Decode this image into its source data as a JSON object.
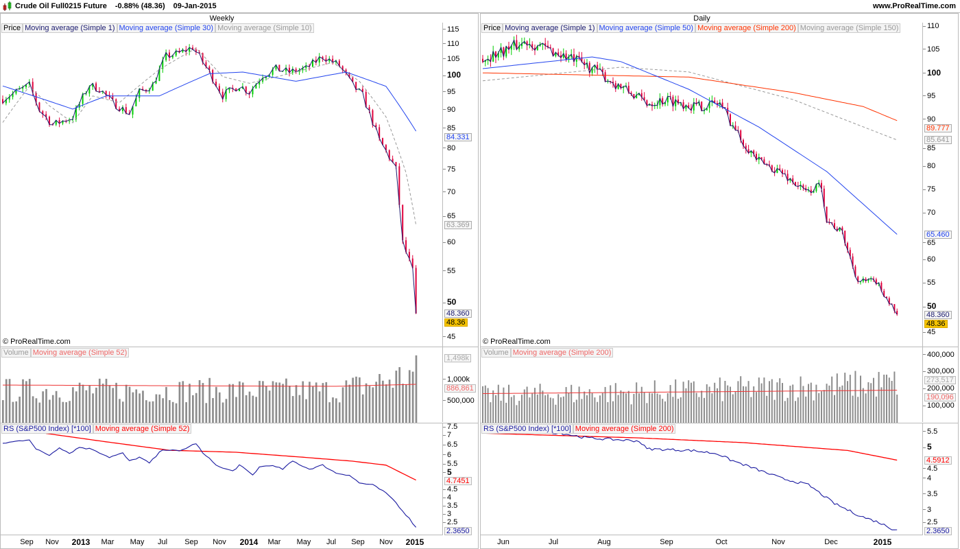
{
  "header": {
    "instrument": "Crude Oil Full0215 Future",
    "change": "-0.88% (48.36)",
    "date": "09-Jan-2015",
    "site": "www.ProRealTime.com",
    "icon": "candlestick-icon"
  },
  "colors": {
    "up": "#00cc00",
    "down": "#e0003c",
    "ma1": "#1a1a6e",
    "ma_blue": "#2244ee",
    "ma_red": "#ff3300",
    "ma_gray": "#999999",
    "volume": "#8c8c8c",
    "rs": "#1a1aa0",
    "rs_ma": "#ff0000",
    "last_bg": "#f5c400"
  },
  "copyright": "© ProRealTime.com",
  "chart_data": [
    {
      "type": "candlestick",
      "timeframe": "Weekly",
      "periods": 125,
      "legend": {
        "price": "Price",
        "ma1": "Moving average (Simple 1)",
        "ma_a": "Moving average (Simple 30)",
        "ma_b": "Moving average (Simple 10)"
      },
      "y_ticks": [
        "115",
        "110",
        "105",
        "100",
        "95",
        "90",
        "85",
        "80",
        "75",
        "70",
        "65",
        "60",
        "55",
        "50",
        "45"
      ],
      "x_labels": [
        "Sep",
        "Nov",
        "2013",
        "Mar",
        "May",
        "Jul",
        "Sep",
        "Nov",
        "2014",
        "Mar",
        "May",
        "Jul",
        "Sep",
        "Nov",
        "2015"
      ],
      "close_anchors": [
        [
          0,
          93
        ],
        [
          8,
          97
        ],
        [
          11,
          90
        ],
        [
          15,
          86
        ],
        [
          21,
          88
        ],
        [
          26,
          97
        ],
        [
          29,
          96
        ],
        [
          33,
          92
        ],
        [
          38,
          89
        ],
        [
          41,
          95
        ],
        [
          45,
          97
        ],
        [
          49,
          106
        ],
        [
          53,
          107
        ],
        [
          57,
          109
        ],
        [
          62,
          101
        ],
        [
          66,
          94
        ],
        [
          71,
          97
        ],
        [
          74,
          95
        ],
        [
          78,
          100
        ],
        [
          82,
          102
        ],
        [
          86,
          101
        ],
        [
          91,
          102
        ],
        [
          96,
          106
        ],
        [
          101,
          103
        ],
        [
          105,
          97
        ],
        [
          108,
          94
        ],
        [
          113,
          82
        ],
        [
          116,
          78
        ],
        [
          118,
          75
        ],
        [
          120,
          60
        ],
        [
          123,
          55
        ],
        [
          124,
          48.36
        ]
      ],
      "ma_a": [
        [
          0,
          96.8
        ],
        [
          21,
          90.2
        ],
        [
          31,
          93.9
        ],
        [
          47,
          93.9
        ],
        [
          62,
          100.5
        ],
        [
          72,
          101
        ],
        [
          88,
          98.2
        ],
        [
          103,
          101
        ],
        [
          115,
          96.7
        ],
        [
          124,
          84.33
        ]
      ],
      "ma_b": [
        [
          0,
          86.6
        ],
        [
          8,
          96.7
        ],
        [
          14,
          91.1
        ],
        [
          21,
          86.5
        ],
        [
          27,
          93.9
        ],
        [
          35,
          92
        ],
        [
          47,
          101.8
        ],
        [
          58,
          108.6
        ],
        [
          66,
          99.6
        ],
        [
          74,
          97.6
        ],
        [
          86,
          100.5
        ],
        [
          99,
          104
        ],
        [
          107,
          98.2
        ],
        [
          115,
          88.1
        ],
        [
          121,
          74.3
        ],
        [
          124,
          63.37
        ]
      ],
      "last": {
        "price": "48.36",
        "ma1": "48.360",
        "ma_a": "84.331",
        "ma_b": "63.369"
      },
      "volume": {
        "legend": "Volume",
        "ma_legend": "Moving average (Simple 52)",
        "ticks": [
          "1,000k",
          "500,000"
        ],
        "base": [
          [
            0,
            800000
          ],
          [
            100,
            800000
          ],
          [
            110,
            950000
          ],
          [
            124,
            1250000
          ]
        ],
        "ma": [
          [
            0,
            870000
          ],
          [
            60,
            850000
          ],
          [
            100,
            840000
          ],
          [
            124,
            886861
          ]
        ],
        "last": "1,498k",
        "ma_last": "886,861"
      },
      "rs": {
        "legend": "RS (S&P500 Index) [*100]",
        "ma_legend": "Moving average (Simple 52)",
        "ticks": [
          "7.5",
          "7",
          "6.5",
          "6",
          "5.5",
          "5",
          "4.5",
          "4",
          "3.5",
          "3",
          "2.5"
        ],
        "values": [
          [
            0,
            6.6
          ],
          [
            8,
            6.8
          ],
          [
            10,
            6.3
          ],
          [
            14,
            6.0
          ],
          [
            17,
            6.4
          ],
          [
            20,
            6.1
          ],
          [
            23,
            6.4
          ],
          [
            27,
            6.3
          ],
          [
            32,
            5.9
          ],
          [
            36,
            6.1
          ],
          [
            38,
            5.7
          ],
          [
            41,
            5.9
          ],
          [
            44,
            5.6
          ],
          [
            48,
            6.3
          ],
          [
            53,
            6.2
          ],
          [
            58,
            6.6
          ],
          [
            60,
            6.1
          ],
          [
            65,
            5.4
          ],
          [
            69,
            5.2
          ],
          [
            71,
            5.5
          ],
          [
            75,
            5.0
          ],
          [
            77,
            5.4
          ],
          [
            80,
            5.5
          ],
          [
            84,
            5.3
          ],
          [
            87,
            5.7
          ],
          [
            92,
            5.3
          ],
          [
            96,
            5.5
          ],
          [
            100,
            5.1
          ],
          [
            104,
            5.0
          ],
          [
            107,
            4.6
          ],
          [
            111,
            4.5
          ],
          [
            114,
            4.2
          ],
          [
            117,
            3.8
          ],
          [
            120,
            3.2
          ],
          [
            122,
            2.8
          ],
          [
            124,
            2.365
          ]
        ],
        "ma": [
          [
            13,
            7.1
          ],
          [
            30,
            6.7
          ],
          [
            50,
            6.25
          ],
          [
            70,
            6.15
          ],
          [
            90,
            5.9
          ],
          [
            105,
            5.7
          ],
          [
            115,
            5.5
          ],
          [
            124,
            4.745
          ]
        ],
        "last": "2.3650",
        "ma_last": "4.7451"
      }
    },
    {
      "type": "candlestick",
      "timeframe": "Daily",
      "periods": 160,
      "legend": {
        "price": "Price",
        "ma1": "Moving average (Simple 1)",
        "ma_a": "Moving average (Simple 50)",
        "ma_c": "Moving average (Simple 200)",
        "ma_b": "Moving average (Simple 150)"
      },
      "y_ticks": [
        "110",
        "105",
        "100",
        "95",
        "90",
        "85",
        "80",
        "75",
        "70",
        "65",
        "60",
        "55",
        "50",
        "45"
      ],
      "x_labels": [
        "Jun",
        "Jul",
        "Aug",
        "Sep",
        "Oct",
        "Nov",
        "Dec",
        "2015"
      ],
      "close_anchors": [
        [
          0,
          103
        ],
        [
          17,
          106.8
        ],
        [
          34,
          103
        ],
        [
          42,
          101
        ],
        [
          50,
          98
        ],
        [
          63,
          93.6
        ],
        [
          71,
          94.3
        ],
        [
          82,
          92.8
        ],
        [
          91,
          93.6
        ],
        [
          99,
          86
        ],
        [
          106,
          81
        ],
        [
          114,
          79
        ],
        [
          124,
          74.5
        ],
        [
          130,
          76
        ],
        [
          132,
          68.6
        ],
        [
          138,
          65.7
        ],
        [
          144,
          55.4
        ],
        [
          151,
          55.4
        ],
        [
          156,
          51
        ],
        [
          159,
          48.36
        ]
      ],
      "ma_a": [
        [
          0,
          100.9
        ],
        [
          42,
          103.4
        ],
        [
          53,
          102.4
        ],
        [
          79,
          96.5
        ],
        [
          106,
          88.4
        ],
        [
          132,
          78.9
        ],
        [
          159,
          65.46
        ]
      ],
      "ma_c": [
        [
          0,
          100
        ],
        [
          79,
          99.1
        ],
        [
          119,
          95.8
        ],
        [
          146,
          92.8
        ],
        [
          159,
          89.777
        ]
      ],
      "ma_b": [
        [
          0,
          98.3
        ],
        [
          53,
          101.2
        ],
        [
          79,
          100.2
        ],
        [
          119,
          94.3
        ],
        [
          159,
          85.641
        ]
      ],
      "last": {
        "price": "48.36",
        "ma1": "48.360",
        "ma_a": "65.460",
        "ma_c": "89.777",
        "ma_b": "85.641"
      },
      "volume": {
        "legend": "Volume",
        "ma_legend": "Moving average (Simple 200)",
        "ticks": [
          "400,000",
          "300,000",
          "200,000",
          "100,000"
        ],
        "base": [
          [
            0,
            170000
          ],
          [
            80,
            200000
          ],
          [
            159,
            250000
          ]
        ],
        "ma": [
          [
            0,
            170000
          ],
          [
            159,
            190096
          ]
        ],
        "last": "273,517",
        "ma_last": "190,096"
      },
      "rs": {
        "legend": "RS (S&P500 Index) [*100]",
        "ma_legend": "Moving average (Simple 200)",
        "ticks": [
          "5.5",
          "5",
          "4.5",
          "4",
          "3.5",
          "3",
          "2.5"
        ],
        "values": [
          [
            0,
            5.5
          ],
          [
            20,
            5.5
          ],
          [
            30,
            5.45
          ],
          [
            40,
            5.3
          ],
          [
            60,
            5.2
          ],
          [
            63,
            4.95
          ],
          [
            80,
            4.9
          ],
          [
            90,
            4.8
          ],
          [
            95,
            4.6
          ],
          [
            105,
            4.3
          ],
          [
            115,
            4.0
          ],
          [
            125,
            3.8
          ],
          [
            135,
            3.2
          ],
          [
            145,
            2.8
          ],
          [
            152,
            2.6
          ],
          [
            157,
            2.4
          ],
          [
            159,
            2.365
          ]
        ],
        "ma": [
          [
            0,
            5.45
          ],
          [
            60,
            5.3
          ],
          [
            100,
            5.15
          ],
          [
            140,
            4.9
          ],
          [
            159,
            4.59
          ]
        ],
        "last": "2.3650",
        "ma_last": "4.5912"
      }
    }
  ]
}
